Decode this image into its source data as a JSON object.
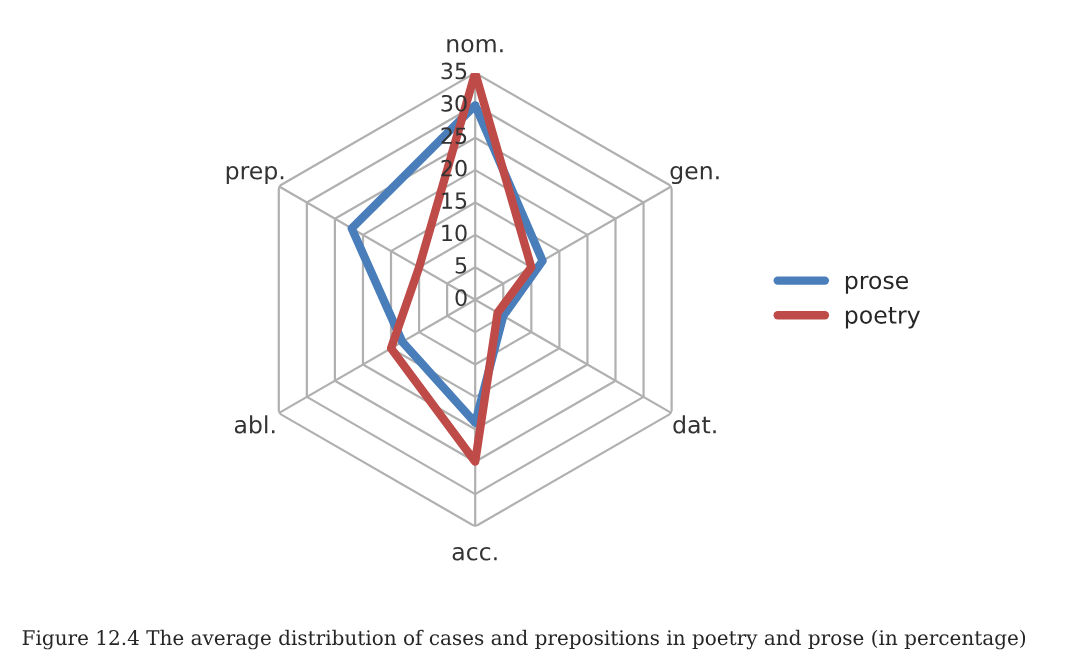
{
  "chart_data": {
    "type": "radar",
    "categories": [
      "nom.",
      "gen.",
      "dat.",
      "acc.",
      "abl.",
      "prep."
    ],
    "series": [
      {
        "name": "prose",
        "color": "#4a7ebb",
        "values": [
          30,
          12,
          5,
          19,
          13,
          22
        ]
      },
      {
        "name": "poetry",
        "color": "#be4b48",
        "values": [
          35,
          10,
          4,
          25,
          15,
          10
        ]
      }
    ],
    "ylim": [
      0,
      35
    ],
    "yticks": [
      0,
      5,
      10,
      15,
      20,
      25,
      30,
      35
    ],
    "grid": true,
    "legend": "right",
    "annotations": [
      "Figure 12.4 The average distribution of cases and prepositions in poetry and prose (in percentage)"
    ]
  }
}
